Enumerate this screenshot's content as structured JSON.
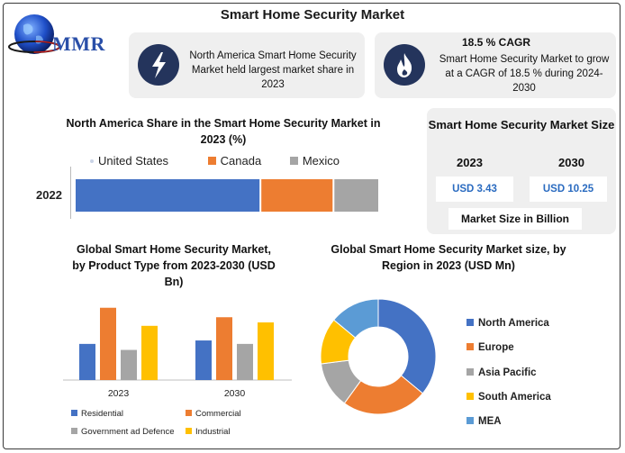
{
  "title": "Smart Home Security Market",
  "logo": {
    "text": "MMR"
  },
  "card_north_america": {
    "icon": "lightning-icon",
    "text": "North America Smart Home Security Market held largest market share in 2023"
  },
  "card_cagr": {
    "icon": "flame-icon",
    "heading": "18.5 % CAGR",
    "text": "Smart Home Security Market to grow at a CAGR of 18.5 % during 2024-2030"
  },
  "market_size": {
    "title": "Smart Home Security Market Size",
    "year_start": "2023",
    "year_end": "2030",
    "value_start": "USD 3.43",
    "value_end": "USD 10.25",
    "unit_label": "Market Size in Billion"
  },
  "colors": {
    "blue": "#4472c4",
    "orange": "#ed7d31",
    "gray": "#a5a5a5",
    "yellow": "#ffc000",
    "lightblue": "#5b9bd5",
    "navy": "#24345c"
  },
  "chart_data": [
    {
      "type": "bar",
      "orientation": "horizontal-stacked",
      "title": "North America Share in the Smart Home Security Market in 2023 (%)",
      "categories": [
        "2022"
      ],
      "series": [
        {
          "name": "United States",
          "values": [
            61
          ],
          "color": "#4472c4"
        },
        {
          "name": "Canada",
          "values": [
            24
          ],
          "color": "#ed7d31"
        },
        {
          "name": "Mexico",
          "values": [
            15
          ],
          "color": "#a5a5a5"
        }
      ],
      "xlim": [
        0,
        100
      ]
    },
    {
      "type": "bar",
      "title": "Global Smart Home Security Market, by Product Type from 2023-2030 (USD Bn)",
      "categories": [
        "2023",
        "2030"
      ],
      "series": [
        {
          "name": "Residential",
          "values": [
            42,
            46
          ],
          "color": "#4472c4"
        },
        {
          "name": "Commercial",
          "values": [
            84,
            73
          ],
          "color": "#ed7d31"
        },
        {
          "name": "Government ad Defence",
          "values": [
            35,
            42
          ],
          "color": "#a5a5a5"
        },
        {
          "name": "Industrial",
          "values": [
            63,
            67
          ],
          "color": "#ffc000"
        }
      ],
      "ylim": [
        0,
        90
      ]
    },
    {
      "type": "pie",
      "variant": "donut",
      "title": "Global Smart Home Security Market size, by Region in 2023 (USD Mn)",
      "labels": [
        "North America",
        "Europe",
        "Asia Pacific",
        "South America",
        "MEA"
      ],
      "values": [
        36,
        24,
        13,
        13,
        14
      ],
      "colors": [
        "#4472c4",
        "#ed7d31",
        "#a5a5a5",
        "#ffc000",
        "#5b9bd5"
      ]
    }
  ]
}
